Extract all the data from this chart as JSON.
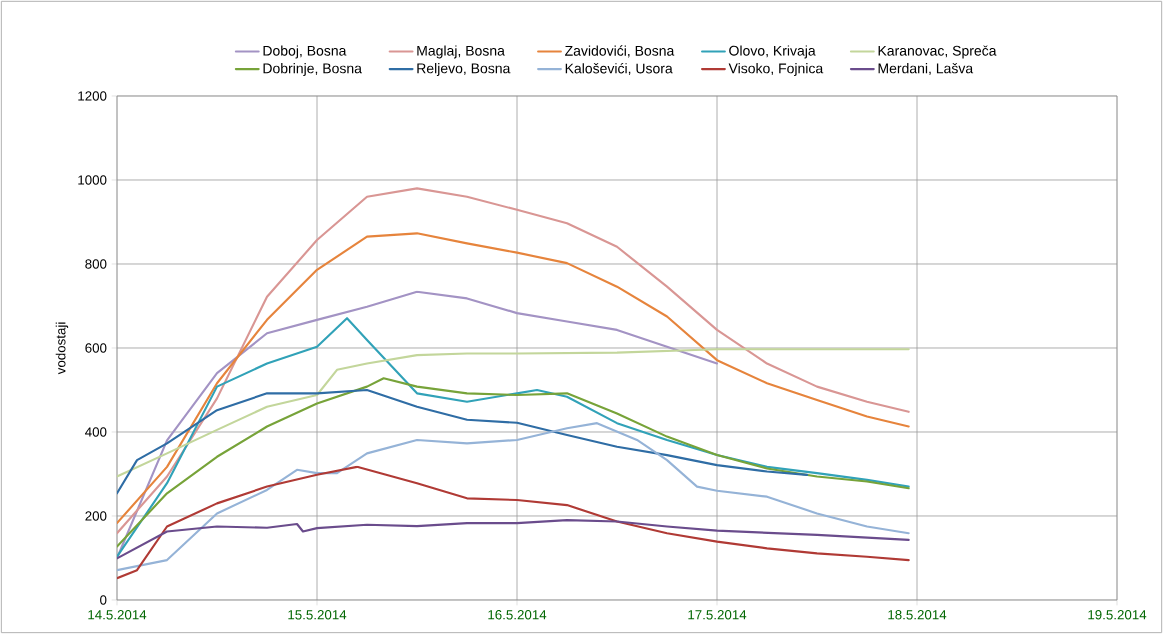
{
  "chart_data": {
    "type": "line",
    "ylabel": "vodostaji",
    "xlim": [
      "2014-05-14",
      "2014-05-19"
    ],
    "xticks": [
      {
        "value": "2014-05-14",
        "label": "14.5.2014"
      },
      {
        "value": "2014-05-15",
        "label": "15.5.2014"
      },
      {
        "value": "2014-05-16",
        "label": "16.5.2014"
      },
      {
        "value": "2014-05-17",
        "label": "17.5.2014"
      },
      {
        "value": "2014-05-18",
        "label": "18.5.2014"
      },
      {
        "value": "2014-05-19",
        "label": "19.5.2014"
      }
    ],
    "ylim": [
      0,
      1200
    ],
    "yticks": [
      0,
      200,
      400,
      600,
      800,
      1000,
      1200
    ],
    "grid": true,
    "legend": "top",
    "series": [
      {
        "name": "Doboj, Bosna",
        "color": "#a393c4",
        "x": [
          "2014-05-14T00:00",
          "2014-05-14T06:00",
          "2014-05-14T12:00",
          "2014-05-14T18:00",
          "2014-05-15T00:00",
          "2014-05-15T06:00",
          "2014-05-15T12:00",
          "2014-05-15T18:00",
          "2014-05-16T00:00",
          "2014-05-16T06:00",
          "2014-05-16T12:00",
          "2014-05-16T18:00",
          "2014-05-17T00:00"
        ],
        "values": [
          100,
          380,
          540,
          635,
          667,
          698,
          734,
          718,
          683,
          663,
          643,
          603,
          563
        ]
      },
      {
        "name": "Maglaj, Bosna",
        "color": "#d99694",
        "x": [
          "2014-05-14T00:00",
          "2014-05-14T06:00",
          "2014-05-14T12:00",
          "2014-05-14T18:00",
          "2014-05-15T00:00",
          "2014-05-15T06:00",
          "2014-05-15T12:00",
          "2014-05-15T18:00",
          "2014-05-16T00:00",
          "2014-05-16T06:00",
          "2014-05-16T12:00",
          "2014-05-16T18:00",
          "2014-05-17T00:00",
          "2014-05-17T06:00",
          "2014-05-17T12:00",
          "2014-05-17T18:00",
          "2014-05-17T23:00"
        ],
        "values": [
          159,
          294,
          480,
          722,
          857,
          960,
          980,
          960,
          929,
          897,
          841,
          746,
          643,
          563,
          508,
          472,
          448
        ]
      },
      {
        "name": "Zavidovići, Bosna",
        "color": "#e6843c",
        "x": [
          "2014-05-14T00:00",
          "2014-05-14T06:00",
          "2014-05-14T12:00",
          "2014-05-14T18:00",
          "2014-05-15T00:00",
          "2014-05-15T06:00",
          "2014-05-15T12:00",
          "2014-05-15T18:00",
          "2014-05-16T00:00",
          "2014-05-16T06:00",
          "2014-05-16T12:00",
          "2014-05-16T18:00",
          "2014-05-17T00:00",
          "2014-05-17T06:00",
          "2014-05-17T12:00",
          "2014-05-17T18:00",
          "2014-05-17T23:00"
        ],
        "values": [
          183,
          317,
          516,
          667,
          786,
          865,
          873,
          849,
          827,
          802,
          746,
          675,
          571,
          516,
          476,
          437,
          413
        ]
      },
      {
        "name": "Olovo, Krivaja",
        "color": "#31a2b8",
        "x": [
          "2014-05-14T00:00",
          "2014-05-14T06:00",
          "2014-05-14T12:00",
          "2014-05-14T18:00",
          "2014-05-15T00:00",
          "2014-05-15T03:36",
          "2014-05-15T06:00",
          "2014-05-15T12:00",
          "2014-05-15T18:00",
          "2014-05-16T00:00",
          "2014-05-16T02:24",
          "2014-05-16T06:00",
          "2014-05-16T12:00",
          "2014-05-16T18:00",
          "2014-05-17T00:00",
          "2014-05-17T06:00",
          "2014-05-17T12:00",
          "2014-05-17T18:00",
          "2014-05-17T23:00"
        ],
        "values": [
          103,
          278,
          508,
          563,
          603,
          671,
          619,
          492,
          472,
          492,
          500,
          484,
          421,
          381,
          345,
          317,
          302,
          286,
          270
        ]
      },
      {
        "name": "Karanovac, Spreča",
        "color": "#c3d69b",
        "x": [
          "2014-05-14T00:00",
          "2014-05-14T06:00",
          "2014-05-14T12:00",
          "2014-05-14T18:00",
          "2014-05-15T00:00",
          "2014-05-15T02:24",
          "2014-05-15T06:00",
          "2014-05-15T12:00",
          "2014-05-15T18:00",
          "2014-05-16T00:00",
          "2014-05-16T12:00",
          "2014-05-17T00:00",
          "2014-05-17T12:00",
          "2014-05-17T23:00"
        ],
        "values": [
          294,
          349,
          405,
          460,
          488,
          548,
          563,
          583,
          587,
          587,
          589,
          597,
          597,
          597
        ]
      },
      {
        "name": "Dobrinje, Bosna",
        "color": "#77a339",
        "x": [
          "2014-05-14T00:00",
          "2014-05-14T06:00",
          "2014-05-14T12:00",
          "2014-05-14T18:00",
          "2014-05-15T00:00",
          "2014-05-15T06:00",
          "2014-05-15T08:00",
          "2014-05-15T12:00",
          "2014-05-15T18:00",
          "2014-05-16T00:00",
          "2014-05-16T06:00",
          "2014-05-16T12:00",
          "2014-05-16T18:00",
          "2014-05-17T00:00",
          "2014-05-17T06:00",
          "2014-05-17T12:00",
          "2014-05-17T18:00",
          "2014-05-17T23:00"
        ],
        "values": [
          127,
          254,
          341,
          413,
          468,
          508,
          528,
          508,
          492,
          488,
          492,
          444,
          389,
          345,
          313,
          294,
          282,
          266
        ]
      },
      {
        "name": "Reljevo, Bosna",
        "color": "#2f6da5",
        "x": [
          "2014-05-14T00:00",
          "2014-05-14T02:24",
          "2014-05-14T06:00",
          "2014-05-14T12:00",
          "2014-05-14T18:00",
          "2014-05-15T00:00",
          "2014-05-15T06:00",
          "2014-05-15T12:00",
          "2014-05-15T18:00",
          "2014-05-16T00:00",
          "2014-05-16T06:00",
          "2014-05-16T12:00",
          "2014-05-16T18:00",
          "2014-05-17T00:00",
          "2014-05-17T06:00",
          "2014-05-17T10:48"
        ],
        "values": [
          254,
          333,
          373,
          452,
          492,
          492,
          500,
          460,
          429,
          422,
          393,
          365,
          345,
          321,
          306,
          298
        ]
      },
      {
        "name": "Kaloševići, Usora",
        "color": "#95b3d7",
        "x": [
          "2014-05-14T00:00",
          "2014-05-14T06:00",
          "2014-05-14T12:00",
          "2014-05-14T18:00",
          "2014-05-14T21:36",
          "2014-05-15T00:00",
          "2014-05-15T02:24",
          "2014-05-15T06:00",
          "2014-05-15T12:00",
          "2014-05-15T18:00",
          "2014-05-16T00:00",
          "2014-05-16T06:00",
          "2014-05-16T09:36",
          "2014-05-16T14:24",
          "2014-05-16T18:00",
          "2014-05-16T21:36",
          "2014-05-17T00:00",
          "2014-05-17T06:00",
          "2014-05-17T12:00",
          "2014-05-17T18:00",
          "2014-05-17T23:00"
        ],
        "values": [
          71,
          95,
          206,
          262,
          310,
          302,
          302,
          349,
          381,
          373,
          381,
          409,
          421,
          381,
          333,
          270,
          260,
          246,
          206,
          175,
          159
        ]
      },
      {
        "name": "Visoko, Fojnica",
        "color": "#b03a35",
        "x": [
          "2014-05-14T00:00",
          "2014-05-14T02:24",
          "2014-05-14T06:00",
          "2014-05-14T12:00",
          "2014-05-14T18:00",
          "2014-05-15T00:00",
          "2014-05-15T04:48",
          "2014-05-15T12:00",
          "2014-05-15T18:00",
          "2014-05-16T00:00",
          "2014-05-16T06:00",
          "2014-05-16T12:00",
          "2014-05-16T18:00",
          "2014-05-17T00:00",
          "2014-05-17T06:00",
          "2014-05-17T12:00",
          "2014-05-17T18:00",
          "2014-05-17T23:00"
        ],
        "values": [
          52,
          71,
          175,
          230,
          270,
          298,
          317,
          278,
          242,
          238,
          226,
          187,
          159,
          139,
          123,
          111,
          103,
          95
        ]
      },
      {
        "name": "Merdani, Lašva",
        "color": "#6a4c8c",
        "x": [
          "2014-05-14T00:00",
          "2014-05-14T06:00",
          "2014-05-14T12:00",
          "2014-05-14T18:00",
          "2014-05-14T21:36",
          "2014-05-14T22:19",
          "2014-05-15T00:00",
          "2014-05-15T06:00",
          "2014-05-15T12:00",
          "2014-05-15T18:00",
          "2014-05-16T00:00",
          "2014-05-16T06:00",
          "2014-05-16T12:00",
          "2014-05-16T18:00",
          "2014-05-17T00:00",
          "2014-05-17T12:00",
          "2014-05-17T23:00"
        ],
        "values": [
          99,
          163,
          175,
          172,
          181,
          163,
          171,
          179,
          176,
          183,
          183,
          190,
          187,
          175,
          165,
          155,
          143
        ]
      }
    ]
  }
}
